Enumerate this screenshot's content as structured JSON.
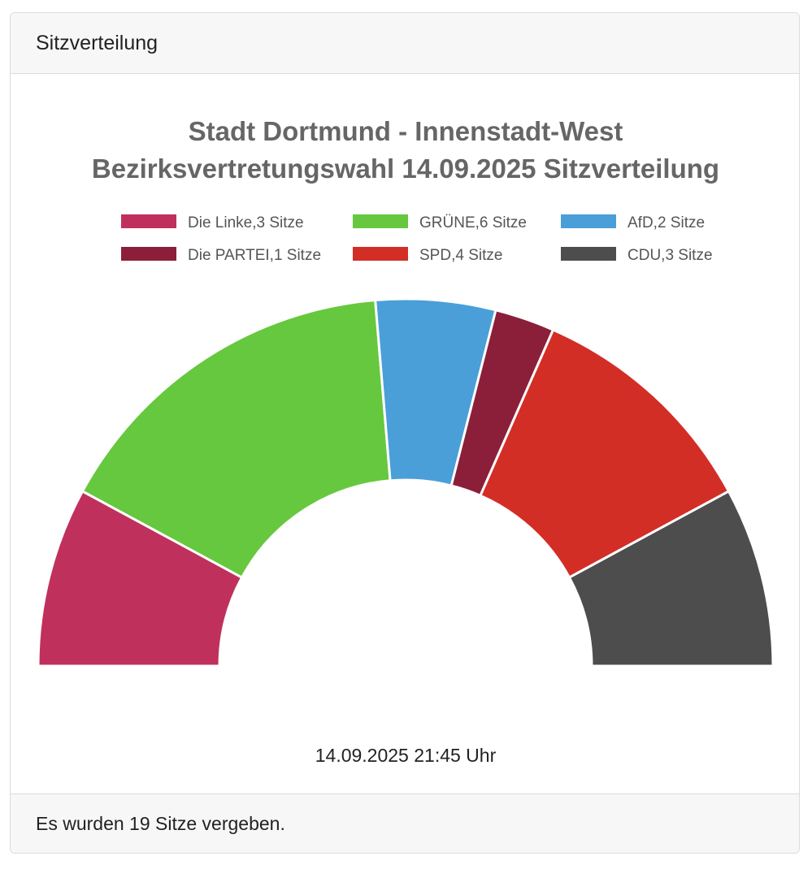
{
  "card": {
    "header": "Sitzverteilung",
    "footer": "Es wurden 19 Sitze vergeben."
  },
  "chart_data": {
    "type": "pie",
    "variant": "half-doughnut",
    "title": [
      "Stadt Dortmund - Innenstadt-West",
      "Bezirksvertretungswahl 14.09.2025 Sitzverteilung"
    ],
    "legend_position": "top",
    "series": [
      {
        "name": "Die Linke",
        "value": 3,
        "label": "Die Linke,3 Sitze",
        "color": "#c0305c"
      },
      {
        "name": "GRÜNE",
        "value": 6,
        "label": "GRÜNE,6 Sitze",
        "color": "#66c83e"
      },
      {
        "name": "AfD",
        "value": 2,
        "label": "AfD,2 Sitze",
        "color": "#4a9fd8"
      },
      {
        "name": "Die PARTEI",
        "value": 1,
        "label": "Die PARTEI,1 Sitze",
        "color": "#8b1f3a"
      },
      {
        "name": "SPD",
        "value": 4,
        "label": "SPD,4 Sitze",
        "color": "#d22e26"
      },
      {
        "name": "CDU",
        "value": 3,
        "label": "CDU,3 Sitze",
        "color": "#4d4d4d"
      }
    ],
    "timestamp": "14.09.2025 21:45 Uhr"
  }
}
